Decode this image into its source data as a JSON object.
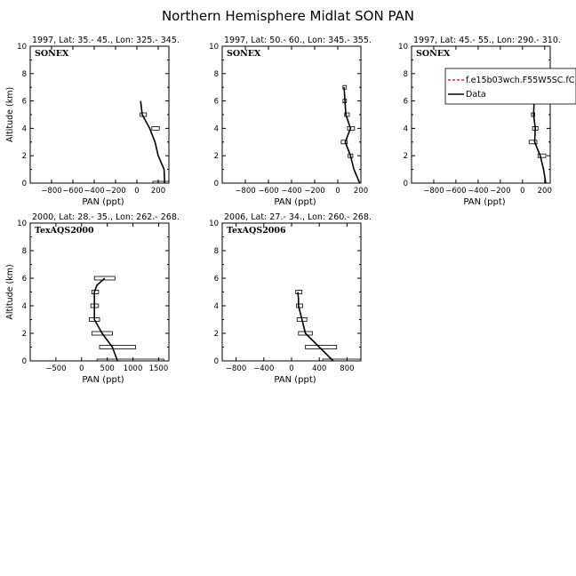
{
  "figure": {
    "title": "Northern Hemisphere Midlat SON PAN"
  },
  "chart_data": [
    {
      "type": "line",
      "title": "1997, Lat: 35.- 45., Lon: 325.- 345.",
      "campaign": "SONEX",
      "xlabel": "PAN (ppt)",
      "ylabel": "Altitude (km)",
      "xlim": [
        -1000,
        300
      ],
      "ylim": [
        0,
        10
      ],
      "xticks": [
        -800,
        -600,
        -400,
        -200,
        0,
        200
      ],
      "xtick_labels": [
        "−800",
        "−600",
        "−400",
        "−200",
        "0",
        "200"
      ],
      "yticks": [
        0,
        2,
        4,
        6,
        8,
        10
      ],
      "series": [
        {
          "name": "Data",
          "x": [
            260,
            255,
            200,
            170,
            120,
            50,
            35
          ],
          "y": [
            0,
            1,
            2,
            3,
            4,
            5,
            6
          ]
        }
      ],
      "boxes": [
        {
          "y": 0,
          "x0": 150,
          "x1": 300
        },
        {
          "y": 4,
          "x0": 140,
          "x1": 210
        },
        {
          "y": 5,
          "x0": 30,
          "x1": 90
        }
      ],
      "legend": null
    },
    {
      "type": "line",
      "title": "1997, Lat: 50.- 60., Lon: 345.- 355.",
      "campaign": "SONEX",
      "xlabel": "PAN (ppt)",
      "ylabel": "",
      "xlim": [
        -1000,
        200
      ],
      "ylim": [
        0,
        10
      ],
      "xticks": [
        -800,
        -600,
        -400,
        -200,
        0,
        200
      ],
      "xtick_labels": [
        "−800",
        "−600",
        "−400",
        "−200",
        "0",
        "200"
      ],
      "yticks": [
        0,
        2,
        4,
        6,
        8,
        10
      ],
      "series": [
        {
          "name": "Data",
          "x": [
            190,
            140,
            110,
            65,
            110,
            70,
            55
          ],
          "y": [
            0,
            1,
            2,
            3,
            4,
            5,
            7
          ]
        }
      ],
      "boxes": [
        {
          "y": 2,
          "x0": 90,
          "x1": 130
        },
        {
          "y": 3,
          "x0": 30,
          "x1": 80
        },
        {
          "y": 4,
          "x0": 85,
          "x1": 145
        },
        {
          "y": 5,
          "x0": 60,
          "x1": 100
        },
        {
          "y": 6,
          "x0": 45,
          "x1": 75
        },
        {
          "y": 7,
          "x0": 45,
          "x1": 75
        }
      ],
      "legend": null
    },
    {
      "type": "line",
      "title": "1997, Lat: 45.- 55., Lon: 290.- 310.",
      "campaign": "SONEX",
      "xlabel": "PAN (ppt)",
      "ylabel": "",
      "xlim": [
        -1000,
        250
      ],
      "ylim": [
        0,
        10
      ],
      "xticks": [
        -800,
        -600,
        -400,
        -200,
        0,
        200
      ],
      "xtick_labels": [
        "−800",
        "−600",
        "−400",
        "−200",
        "0",
        "200"
      ],
      "yticks": [
        0,
        2,
        4,
        6,
        8,
        10
      ],
      "series": [
        {
          "name": "Data",
          "x": [
            210,
            190,
            160,
            110,
            115,
            100,
            105,
            100,
            95
          ],
          "y": [
            0,
            1,
            2,
            3,
            4,
            5,
            6,
            7,
            8
          ]
        },
        {
          "name": "f.e15b03wch.F55W5SC.fC",
          "x": [],
          "y": []
        }
      ],
      "boxes": [
        {
          "y": 2,
          "x0": 140,
          "x1": 210
        },
        {
          "y": 3,
          "x0": 60,
          "x1": 130
        },
        {
          "y": 4,
          "x0": 90,
          "x1": 140
        },
        {
          "y": 5,
          "x0": 80,
          "x1": 110
        },
        {
          "y": 6,
          "x0": 70,
          "x1": 130
        },
        {
          "y": 7,
          "x0": 80,
          "x1": 110
        },
        {
          "y": 8,
          "x0": 80,
          "x1": 110
        }
      ],
      "legend": {
        "placement": "top-right",
        "entries": [
          "f.e15b03wch.F55W5SC.fC",
          "Data"
        ]
      }
    },
    {
      "type": "line",
      "title": "2000, Lat: 28.- 35., Lon: 262.- 268.",
      "campaign": "TexAQS2000",
      "xlabel": "PAN (ppt)",
      "ylabel": "Altitude (km)",
      "xlim": [
        -1000,
        1700
      ],
      "ylim": [
        0,
        10
      ],
      "xticks": [
        -500,
        0,
        500,
        1000,
        1500
      ],
      "xtick_labels": [
        "−500",
        "0",
        "500",
        "1000",
        "1500"
      ],
      "yticks": [
        0,
        2,
        4,
        6,
        8,
        10
      ],
      "series": [
        {
          "name": "Data",
          "x": [
            700,
            600,
            400,
            250,
            250,
            250,
            300,
            450
          ],
          "y": [
            0,
            1,
            2,
            3,
            4,
            5,
            5.5,
            6
          ]
        }
      ],
      "boxes": [
        {
          "y": 0,
          "x0": 300,
          "x1": 1600
        },
        {
          "y": 1,
          "x0": 350,
          "x1": 1050
        },
        {
          "y": 2,
          "x0": 200,
          "x1": 600
        },
        {
          "y": 3,
          "x0": 150,
          "x1": 350
        },
        {
          "y": 4,
          "x0": 180,
          "x1": 330
        },
        {
          "y": 5,
          "x0": 200,
          "x1": 330
        },
        {
          "y": 6,
          "x0": 250,
          "x1": 650
        }
      ],
      "legend": null
    },
    {
      "type": "line",
      "title": "2006, Lat: 27.- 34., Lon: 260.- 268.",
      "campaign": "TexAQS2006",
      "xlabel": "PAN (ppt)",
      "ylabel": "",
      "xlim": [
        -1000,
        1000
      ],
      "ylim": [
        0,
        10
      ],
      "xticks": [
        -800,
        -400,
        0,
        400,
        800
      ],
      "xtick_labels": [
        "−800",
        "−400",
        "0",
        "400",
        "800"
      ],
      "yticks": [
        0,
        2,
        4,
        6,
        8,
        10
      ],
      "series": [
        {
          "name": "Data",
          "x": [
            600,
            400,
            200,
            150,
            100,
            100,
            90
          ],
          "y": [
            0,
            1,
            2,
            3,
            4,
            4.5,
            5
          ]
        }
      ],
      "boxes": [
        {
          "y": 0,
          "x0": 450,
          "x1": 1000
        },
        {
          "y": 1,
          "x0": 200,
          "x1": 650
        },
        {
          "y": 2,
          "x0": 100,
          "x1": 300
        },
        {
          "y": 3,
          "x0": 80,
          "x1": 220
        },
        {
          "y": 4,
          "x0": 70,
          "x1": 160
        },
        {
          "y": 5,
          "x0": 60,
          "x1": 150
        }
      ],
      "legend": null
    }
  ]
}
